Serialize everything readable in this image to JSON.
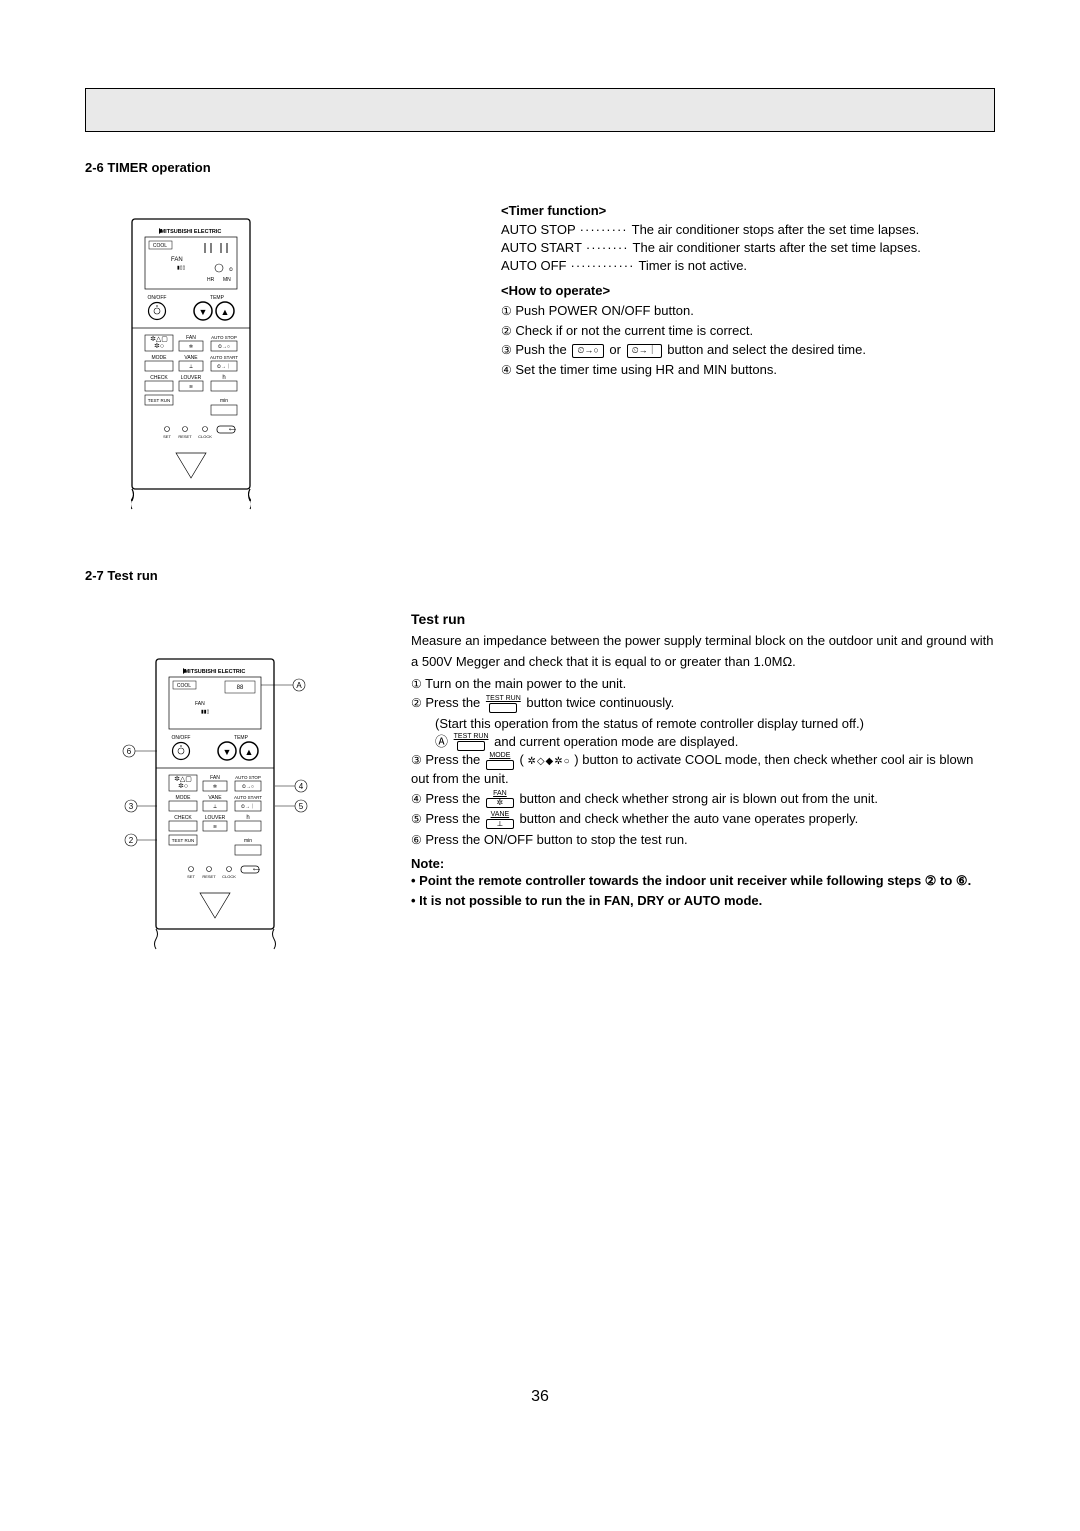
{
  "page_number": "36",
  "section1": {
    "title": "2-6 TIMER operation",
    "timer_head": "<Timer function>",
    "items": [
      {
        "label": "AUTO STOP",
        "dots": "·········",
        "desc": "The air conditioner stops after the set time lapses."
      },
      {
        "label": "AUTO START",
        "dots": "········",
        "desc": "The air conditioner starts after the set time lapses."
      },
      {
        "label": "AUTO OFF",
        "dots": "············",
        "desc": "Timer is not active."
      }
    ],
    "howto_head": "<How to operate>",
    "steps": [
      "Push POWER ON/OFF button.",
      "Check if or not the current time is correct.",
      "Push the __AUTOSTOP__ or __AUTOSTART__ button and select the desired time.",
      "Set the timer time using HR and MIN buttons."
    ]
  },
  "section2": {
    "title": "2-7 Test run",
    "run_head": "Test run",
    "intro": "Measure an impedance between the power supply terminal block on the outdoor unit and ground with a 500V Megger and check that it is equal to or greater than 1.0MΩ.",
    "steps": [
      "Turn on the main power to the unit.",
      "Press the __TESTRUN__ button twice continuously.",
      "Press the __MODE__ ( __MODEICONS__ ) button to activate COOL mode, then check whether cool air is blown out from the unit.",
      "Press the __FAN__ button and check whether strong air is blown out from the unit.",
      "Press the __VANE__ button and check whether the auto vane operates properly.",
      "Press the ON/OFF button to stop the test run."
    ],
    "sub_after_2a": "(Start this operation from the status of remote controller display turned off.)",
    "sub_after_2b": "__TESTRUN__ and current operation mode are displayed.",
    "note_head": "Note:",
    "note1": "• Point the remote controller towards the indoor unit receiver while following steps ② to ⑥.",
    "note2": "• It is not possible to run the in FAN, DRY or AUTO mode."
  },
  "remote": {
    "brand": "MITSUBISHI ELECTRIC",
    "display_mode": "COOL",
    "onoff_label": "ON/OFF",
    "temp_label": "TEMP",
    "fan_label": "FAN",
    "autostop_label": "AUTO STOP",
    "autostart_label": "AUTO START",
    "mode_label": "MODE",
    "vane_label": "VANE",
    "check_label": "CHECK",
    "louver_label": "LOUVER",
    "testrun_label": "TEST RUN",
    "h_label": "h",
    "min_label": "min",
    "set_label": "SET",
    "reset_label": "RESET",
    "clock_label": "CLOCK",
    "hr_set": "HR",
    "mn_set": "MN"
  },
  "callouts": [
    "Ⓐ",
    "②",
    "③",
    "④",
    "⑤",
    "⑥"
  ],
  "colors": {
    "header_bg": "#e9e9e9",
    "text": "#000000",
    "border": "#000000",
    "bg": "#ffffff"
  }
}
